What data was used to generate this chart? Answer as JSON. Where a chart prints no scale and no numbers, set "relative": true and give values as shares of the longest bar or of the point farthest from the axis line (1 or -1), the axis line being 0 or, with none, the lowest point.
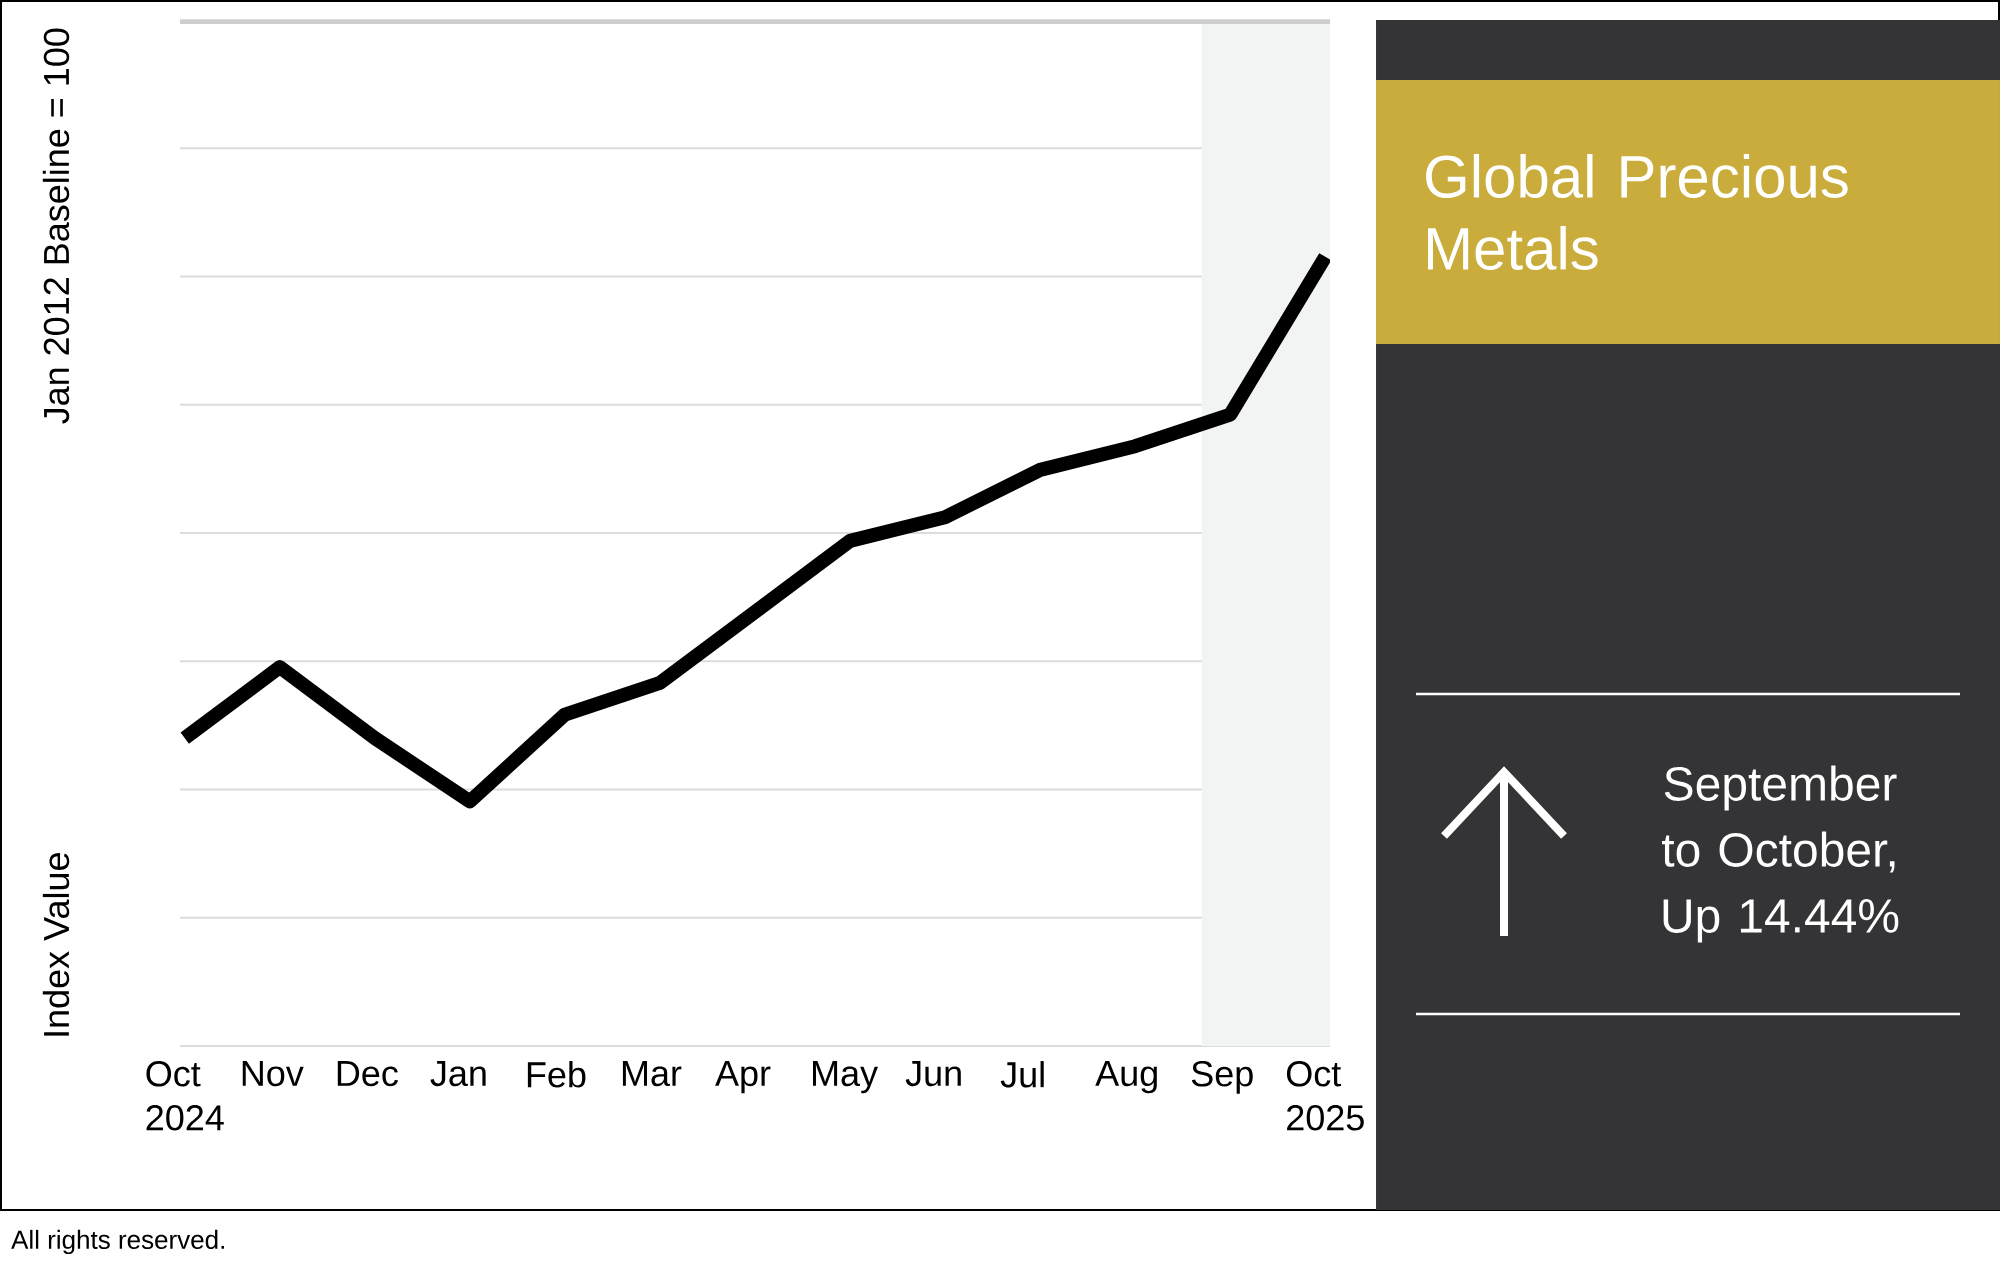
{
  "chart_data": {
    "type": "line",
    "title": "Global Precious Metals",
    "ylabel": "Index Value",
    "relative": true,
    "grid": "y",
    "line_style": "solid",
    "categories": [
      "Oct 2024",
      "Nov",
      "Dec",
      "Jan",
      "Feb",
      "Mar",
      "Apr",
      "May",
      "Jun",
      "Jul",
      "Aug",
      "Sep",
      "Oct 2025"
    ],
    "series": [
      {
        "color": "#000000",
        "values": [
          0.39,
          0.48,
          0.39,
          0.31,
          0.42,
          0.46,
          0.55,
          0.64,
          0.67,
          0.73,
          0.76,
          0.8,
          1.0
        ]
      }
    ],
    "bands": [
      {
        "axis": "x",
        "from": "Sep",
        "to": "Oct 2025",
        "color": "#f2f4f3"
      }
    ],
    "annotations": [
      "Jan 2012 Baseline = 100",
      "September to October, Up 14.44%",
      "All rights reserved."
    ]
  }
}
